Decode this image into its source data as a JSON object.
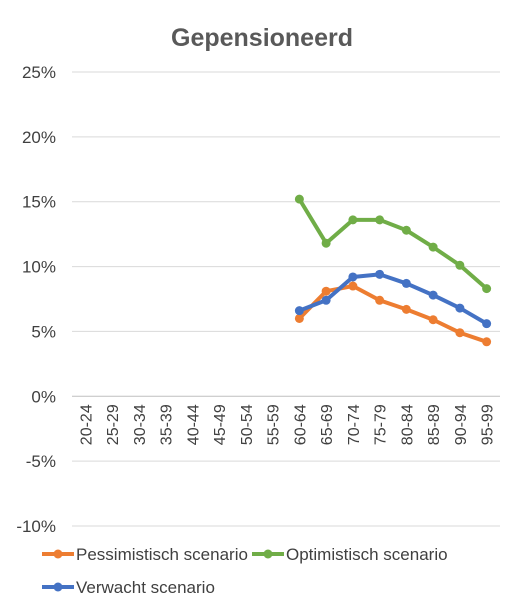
{
  "chart_data": {
    "type": "line",
    "title": "Gepensioneerd",
    "xlabel": "",
    "ylabel": "",
    "categories": [
      "20-24",
      "25-29",
      "30-34",
      "35-39",
      "40-44",
      "45-49",
      "50-54",
      "55-59",
      "60-64",
      "65-69",
      "70-74",
      "75-79",
      "80-84",
      "85-89",
      "90-94",
      "95-99"
    ],
    "ylim": [
      -10,
      25
    ],
    "ytick_values": [
      -10,
      -5,
      0,
      5,
      10,
      15,
      20,
      25
    ],
    "ytick_labels": [
      "-10%",
      "-5%",
      "0%",
      "5%",
      "10%",
      "15%",
      "20%",
      "25%"
    ],
    "grid": true,
    "legend_position": "bottom",
    "series": [
      {
        "name": "Pessimistisch scenario",
        "color": "#ED7D31",
        "values": [
          null,
          null,
          null,
          null,
          null,
          null,
          null,
          null,
          6.0,
          8.1,
          8.5,
          7.4,
          6.7,
          5.9,
          4.9,
          4.2
        ]
      },
      {
        "name": "Optimistisch scenario",
        "color": "#70AD47",
        "values": [
          null,
          null,
          null,
          null,
          null,
          null,
          null,
          null,
          15.2,
          11.8,
          13.6,
          13.6,
          12.8,
          11.5,
          10.1,
          8.3
        ]
      },
      {
        "name": "Verwacht scenario",
        "color": "#4472C4",
        "values": [
          null,
          null,
          null,
          null,
          null,
          null,
          null,
          null,
          6.6,
          7.4,
          9.2,
          9.4,
          8.7,
          7.8,
          6.8,
          5.6
        ]
      }
    ]
  }
}
